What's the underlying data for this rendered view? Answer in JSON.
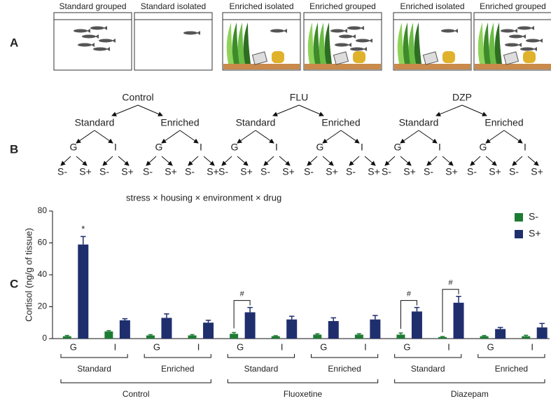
{
  "panel_labels": [
    "A",
    "B",
    "C"
  ],
  "tanks": [
    "Standard grouped",
    "Standard isolated",
    "Enriched  isolated",
    "Enriched grouped",
    "Enriched isolated",
    "Enriched grouped"
  ],
  "tree": [
    {
      "root": "Control",
      "branches": [
        {
          "label": "Standard",
          "children": [
            {
              "label": "G",
              "leaves": [
                "S-",
                "S+"
              ]
            },
            {
              "label": "I",
              "leaves": [
                "S-",
                "S+"
              ]
            }
          ]
        },
        {
          "label": "Enriched",
          "children": [
            {
              "label": "G",
              "leaves": [
                "S-",
                "S+"
              ]
            },
            {
              "label": "I",
              "leaves": [
                "S-",
                "S+"
              ]
            }
          ]
        }
      ]
    },
    {
      "root": "FLU",
      "branches": [
        {
          "label": "Standard",
          "children": [
            {
              "label": "G",
              "leaves": [
                "S-",
                "S+"
              ]
            },
            {
              "label": "I",
              "leaves": [
                "S-",
                "S+"
              ]
            }
          ]
        },
        {
          "label": "Enriched",
          "children": [
            {
              "label": "G",
              "leaves": [
                "S-",
                "S+"
              ]
            },
            {
              "label": "I",
              "leaves": [
                "S-",
                "S+"
              ]
            }
          ]
        }
      ]
    },
    {
      "root": "DZP",
      "branches": [
        {
          "label": "Standard",
          "children": [
            {
              "label": "G",
              "leaves": [
                "S-",
                "S+"
              ]
            },
            {
              "label": "I",
              "leaves": [
                "S-",
                "S+"
              ]
            }
          ]
        },
        {
          "label": "Enriched",
          "children": [
            {
              "label": "G",
              "leaves": [
                "S-",
                "S+"
              ]
            },
            {
              "label": "I",
              "leaves": [
                "S-",
                "S+"
              ]
            }
          ]
        }
      ]
    }
  ],
  "formula": "stress × housing × environment ×  drug",
  "chart_data": {
    "type": "bar",
    "y_label": "Cortisol (ng/g of tissue)",
    "categories": [
      "G",
      "I",
      "G",
      "I",
      "G",
      "I",
      "G",
      "I",
      "G",
      "I",
      "G",
      "I"
    ],
    "environments": [
      "Standard",
      "Enriched",
      "Standard",
      "Enriched",
      "Standard",
      "Enriched"
    ],
    "drugs": [
      "Control",
      "Fluoxetine",
      "Diazepam"
    ],
    "series": [
      {
        "name": "S-",
        "color": "#1e7b34",
        "values": [
          1.5,
          4.5,
          2,
          2,
          3,
          1.5,
          2.5,
          2.5,
          2.5,
          1,
          1.5,
          1.5
        ],
        "errors": [
          0.5,
          0.5,
          0.5,
          0.5,
          0.8,
          0.3,
          0.5,
          0.6,
          1,
          0.3,
          0.4,
          0.6
        ]
      },
      {
        "name": "S+",
        "color": "#1f2f6e",
        "values": [
          59,
          11.5,
          13,
          10,
          16.5,
          12,
          11,
          12,
          17,
          22.5,
          6,
          7
        ],
        "errors": [
          5,
          1,
          2.5,
          1.5,
          3,
          2,
          2,
          2.5,
          2.5,
          4,
          1,
          2.5
        ]
      }
    ],
    "annotations": [
      "*",
      null,
      null,
      null,
      "#",
      null,
      null,
      null,
      "#",
      "#",
      null,
      null
    ],
    "ylim": [
      0,
      80
    ],
    "yticks": [
      0,
      20,
      40,
      60,
      80
    ],
    "legend": "top-right"
  }
}
